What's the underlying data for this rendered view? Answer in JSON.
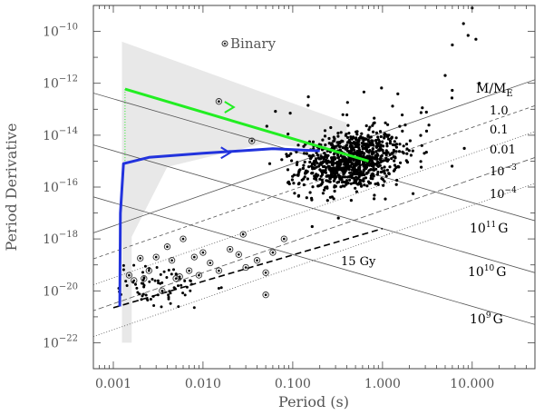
{
  "chart_data": {
    "type": "scatter",
    "title": "",
    "xlabel": "Period (s)",
    "ylabel": "Period Derivative",
    "x_scale": "log",
    "y_scale": "log",
    "xlim": [
      0.0006,
      50
    ],
    "ylim": [
      1e-23,
      1e-09
    ],
    "x_ticks": [
      0.001,
      0.01,
      0.1,
      1,
      10
    ],
    "x_tick_labels": [
      "0.001",
      "0.010",
      "0.100",
      "1.000",
      "10.000"
    ],
    "y_ticks": [
      1e-10,
      1e-12,
      1e-14,
      1e-16,
      1e-18,
      1e-20,
      1e-22
    ],
    "y_tick_labels": [
      {
        "base": "10",
        "exp": "−10"
      },
      {
        "base": "10",
        "exp": "−12"
      },
      {
        "base": "10",
        "exp": "−14"
      },
      {
        "base": "10",
        "exp": "−16"
      },
      {
        "base": "10",
        "exp": "−18"
      },
      {
        "base": "10",
        "exp": "−20"
      },
      {
        "base": "10",
        "exp": "−22"
      }
    ],
    "legend": {
      "marker": "open circle",
      "label": "Binary",
      "position": "top-center"
    },
    "mass_header": {
      "base": "M/M",
      "sub": "E"
    },
    "mass_labels": [
      "1.0",
      "0.1",
      "0.01",
      "10^-3",
      "10^-4"
    ],
    "mass_label_parts": [
      {
        "base": "1.0",
        "exp": ""
      },
      {
        "base": "0.1",
        "exp": ""
      },
      {
        "base": "0.01",
        "exp": ""
      },
      {
        "base": "10",
        "exp": "−3"
      },
      {
        "base": "10",
        "exp": "−4"
      }
    ],
    "field_labels": [
      {
        "base": "10",
        "exp": "11",
        "unit": "G"
      },
      {
        "base": "10",
        "exp": "10",
        "unit": "G"
      },
      {
        "base": "10",
        "exp": "9",
        "unit": "G"
      }
    ],
    "age_label": "15 Gy",
    "colors": {
      "green_track": "#22ee22",
      "blue_track": "#2233dd",
      "shade": "#e8e8e8",
      "points": "#000000",
      "guide_lines": "#555555"
    },
    "tracks": [
      {
        "color": "green",
        "points": [
          [
            0.00135,
            6e-13
          ],
          [
            0.7,
            1e-15
          ]
        ],
        "vertical_dotted_to": 1e-15
      },
      {
        "color": "blue",
        "points": [
          [
            0.00118,
            2.5e-21
          ],
          [
            0.0012,
            1e-17
          ],
          [
            0.0013,
            8e-16
          ],
          [
            0.0025,
            1.4e-15
          ],
          [
            0.01,
            2e-15
          ],
          [
            0.06,
            3e-15
          ],
          [
            0.2,
            2.5e-15
          ]
        ]
      }
    ],
    "binary_points": [
      [
        0.0015,
        4e-20
      ],
      [
        0.0017,
        2.5e-20
      ],
      [
        0.002,
        1.8e-19
      ],
      [
        0.0022,
        3e-20
      ],
      [
        0.0025,
        6e-20
      ],
      [
        0.003,
        2e-19
      ],
      [
        0.0035,
        1e-20
      ],
      [
        0.004,
        5e-19
      ],
      [
        0.0045,
        1.5e-19
      ],
      [
        0.005,
        3e-20
      ],
      [
        0.006,
        1e-18
      ],
      [
        0.007,
        6e-20
      ],
      [
        0.008,
        2e-19
      ],
      [
        0.009,
        4e-20
      ],
      [
        0.01,
        3e-19
      ],
      [
        0.012,
        1.2e-19
      ],
      [
        0.015,
        6e-20
      ],
      [
        0.02,
        4e-19
      ],
      [
        0.025,
        2.5e-19
      ],
      [
        0.03,
        8e-20
      ],
      [
        0.04,
        1.5e-19
      ],
      [
        0.05,
        5e-20
      ],
      [
        0.06,
        3e-19
      ],
      [
        0.08,
        1e-18
      ],
      [
        0.05,
        7e-21
      ],
      [
        0.015,
        2e-13
      ],
      [
        0.035,
        6e-15
      ],
      [
        0.028,
        1.5e-18
      ],
      [
        0.0055,
        3.5e-20
      ]
    ],
    "pulsars_description": "main pulsar population clustered near P≈0.3–1 s, Pdot≈1e-16–1e-14; millisecond pulsars near P≈0.001–0.01 s, Pdot≈1e-21–1e-19"
  }
}
